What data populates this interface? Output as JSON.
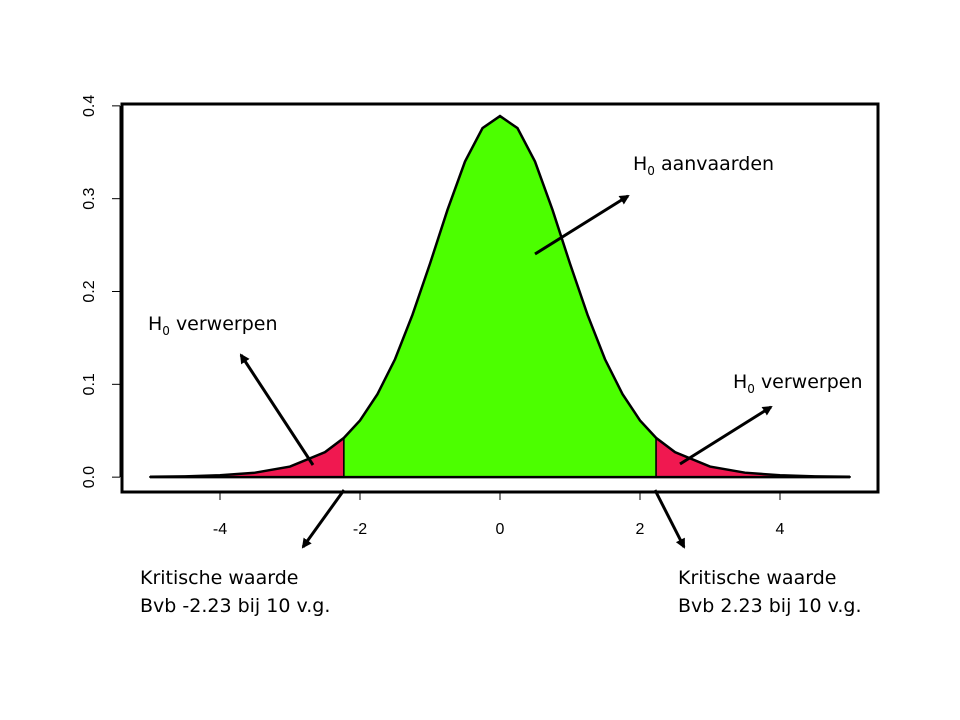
{
  "chart_data": {
    "type": "area",
    "x": [
      -5,
      -4.5,
      -4,
      -3.5,
      -3,
      -2.5,
      -2.23,
      -2,
      -1.75,
      -1.5,
      -1.25,
      -1,
      -0.75,
      -0.5,
      -0.25,
      0,
      0.25,
      0.5,
      0.75,
      1,
      1.25,
      1.5,
      1.75,
      2,
      2.23,
      2.5,
      3,
      3.5,
      4,
      4.5,
      5
    ],
    "values": [
      0.0004,
      0.0009,
      0.002,
      0.0048,
      0.0114,
      0.0269,
      0.0423,
      0.0611,
      0.0895,
      0.127,
      0.175,
      0.23,
      0.288,
      0.34,
      0.376,
      0.389,
      0.376,
      0.34,
      0.288,
      0.23,
      0.175,
      0.127,
      0.0895,
      0.0611,
      0.0423,
      0.0269,
      0.0114,
      0.0048,
      0.002,
      0.0009,
      0.0004
    ],
    "xlim": [
      -5.4,
      5.4
    ],
    "ylim": [
      -0.016,
      0.402
    ],
    "xticks": [
      -4,
      -2,
      0,
      2,
      4
    ],
    "yticks": [
      {
        "value": 0,
        "label": "0.0"
      },
      0.1,
      0.2,
      0.3,
      0.4
    ],
    "reject_below": -2.23,
    "reject_above": 2.23,
    "accept_color": "#4cff00",
    "reject_color": "#f01850",
    "line_color": "#000000",
    "annotations": [
      {
        "symbol": "H",
        "subscript": "0",
        "text": "aanvaarden"
      },
      {
        "symbol": "H",
        "subscript": "0",
        "text": "verwerpen"
      },
      {
        "symbol": "H",
        "subscript": "0",
        "text": "verwerpen"
      }
    ],
    "critical_labels": [
      {
        "lines": [
          "Kritische waarde",
          "Bvb -2.23 bij 10 v.g."
        ]
      },
      {
        "lines": [
          "Kritische waarde",
          "Bvb 2.23 bij 10 v.g."
        ]
      }
    ]
  }
}
